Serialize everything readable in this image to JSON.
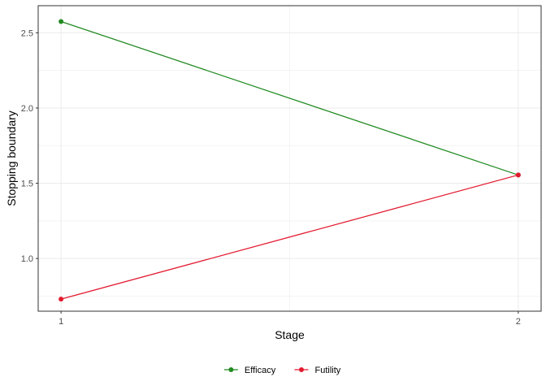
{
  "chart_data": {
    "type": "line",
    "x": [
      1,
      2
    ],
    "x_tick_labels": [
      "1",
      "2"
    ],
    "series": [
      {
        "name": "Efficacy",
        "values": [
          2.575,
          1.555
        ],
        "color": "#228B22"
      },
      {
        "name": "Futility",
        "values": [
          0.73,
          1.555
        ],
        "color": "#E31A2F"
      }
    ],
    "xlabel": "Stage",
    "ylabel": "Stopping boundary",
    "xlim": [
      0.95,
      2.05
    ],
    "ylim": [
      0.65,
      2.68
    ],
    "y_ticks": [
      1.0,
      1.5,
      2.0,
      2.5
    ],
    "y_tick_labels": [
      "1.0",
      "1.5",
      "2.0",
      "2.5"
    ],
    "grid": true,
    "legend_position": "bottom"
  }
}
